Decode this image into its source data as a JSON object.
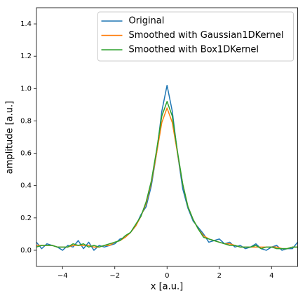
{
  "chart_data": {
    "type": "line",
    "xlabel": "x [a.u.]",
    "ylabel": "amplitude [a.u.]",
    "x": [
      -5,
      -4.8,
      -4.6,
      -4.4,
      -4.2,
      -4,
      -3.8,
      -3.6,
      -3.4,
      -3.2,
      -3,
      -2.8,
      -2.6,
      -2.4,
      -2.2,
      -2,
      -1.8,
      -1.6,
      -1.4,
      -1.2,
      -1,
      -0.8,
      -0.6,
      -0.4,
      -0.2,
      0,
      0.2,
      0.4,
      0.6,
      0.8,
      1,
      1.2,
      1.4,
      1.6,
      1.8,
      2,
      2.2,
      2.4,
      2.6,
      2.8,
      3,
      3.2,
      3.4,
      3.6,
      3.8,
      4,
      4.2,
      4.4,
      4.6,
      4.8,
      5
    ],
    "series": [
      {
        "name": "Original",
        "color": "#1f77b4",
        "values": [
          0.05,
          0.01,
          0.04,
          0.03,
          0.02,
          0.0,
          0.03,
          0.02,
          0.06,
          0.01,
          0.05,
          0.0,
          0.03,
          0.02,
          0.03,
          0.04,
          0.07,
          0.08,
          0.11,
          0.15,
          0.22,
          0.27,
          0.4,
          0.6,
          0.86,
          1.02,
          0.86,
          0.6,
          0.38,
          0.26,
          0.18,
          0.14,
          0.1,
          0.05,
          0.06,
          0.07,
          0.04,
          0.05,
          0.02,
          0.03,
          0.01,
          0.02,
          0.04,
          0.01,
          0.0,
          0.02,
          0.03,
          0.0,
          0.01,
          0.01,
          0.05
        ]
      },
      {
        "name": "Smoothed with Gaussian1DKernel",
        "color": "#ff7f0e",
        "values": [
          0.03,
          0.03,
          0.03,
          0.03,
          0.02,
          0.02,
          0.02,
          0.03,
          0.03,
          0.03,
          0.03,
          0.02,
          0.02,
          0.03,
          0.03,
          0.05,
          0.06,
          0.08,
          0.11,
          0.15,
          0.21,
          0.29,
          0.42,
          0.6,
          0.79,
          0.88,
          0.79,
          0.6,
          0.41,
          0.27,
          0.19,
          0.13,
          0.09,
          0.07,
          0.06,
          0.05,
          0.04,
          0.04,
          0.03,
          0.02,
          0.02,
          0.02,
          0.02,
          0.02,
          0.02,
          0.02,
          0.02,
          0.01,
          0.01,
          0.02,
          0.02
        ]
      },
      {
        "name": "Smoothed with Box1DKernel",
        "color": "#2ca02c",
        "values": [
          0.02,
          0.03,
          0.03,
          0.03,
          0.02,
          0.02,
          0.02,
          0.04,
          0.03,
          0.04,
          0.02,
          0.03,
          0.02,
          0.03,
          0.04,
          0.05,
          0.06,
          0.09,
          0.11,
          0.16,
          0.21,
          0.3,
          0.43,
          0.62,
          0.83,
          0.92,
          0.83,
          0.61,
          0.41,
          0.27,
          0.19,
          0.13,
          0.08,
          0.07,
          0.06,
          0.05,
          0.04,
          0.03,
          0.03,
          0.02,
          0.02,
          0.02,
          0.03,
          0.01,
          0.02,
          0.02,
          0.01,
          0.01,
          0.01,
          0.02,
          0.02
        ]
      }
    ],
    "xlim": [
      -5,
      5
    ],
    "ylim": [
      -0.1,
      1.5
    ],
    "xticks": [
      {
        "value": -4,
        "label": "−4"
      },
      {
        "value": -2,
        "label": "−2"
      },
      0,
      2,
      4
    ],
    "yticks": [
      {
        "value": 0,
        "label": "0.0"
      },
      0.2,
      0.4,
      0.6,
      0.8,
      {
        "value": 1,
        "label": "1.0"
      },
      1.2,
      1.4
    ],
    "legend": "upper right",
    "grid": false
  }
}
